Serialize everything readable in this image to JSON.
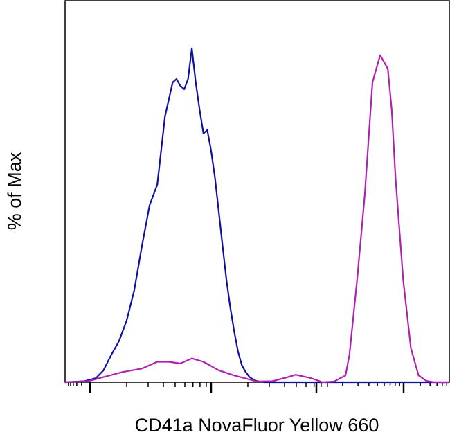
{
  "chart_data": {
    "type": "line",
    "title": "",
    "xlabel": "CD41a NovaFluor Yellow 660",
    "ylabel": "% of Max",
    "x_scale": "log",
    "xlim": [
      0,
      100
    ],
    "ylim": [
      0,
      100
    ],
    "grid": false,
    "legend": "none",
    "series": [
      {
        "color": "#1010a0",
        "x": [
          0,
          5,
          8,
          10,
          12,
          14,
          16,
          18,
          20,
          22,
          24,
          26,
          28,
          29,
          30,
          31,
          32,
          33,
          34,
          35,
          36,
          37,
          38,
          39,
          40,
          41,
          42,
          43,
          44,
          45,
          46,
          47,
          48,
          49,
          50,
          52,
          54,
          56,
          60,
          70,
          100
        ],
        "y": [
          0,
          0.3,
          1.2,
          3.5,
          8,
          12,
          18,
          27,
          40,
          52,
          58,
          78,
          88,
          89,
          87,
          86,
          89,
          98,
          88,
          80,
          73,
          74,
          68,
          60,
          50,
          40,
          30,
          22,
          15,
          9,
          5,
          3,
          1.5,
          0.8,
          0.3,
          0,
          0,
          0,
          0,
          0,
          0
        ]
      },
      {
        "color": "#b020b0",
        "x": [
          0,
          6,
          10,
          15,
          20,
          24,
          27,
          30,
          33,
          36,
          40,
          44,
          48,
          50,
          54,
          58,
          60,
          64,
          67,
          70,
          73,
          74,
          76,
          78,
          80,
          82,
          84,
          85,
          86,
          88,
          90,
          92,
          94,
          96,
          98,
          100
        ],
        "y": [
          0,
          0.3,
          1.5,
          3,
          4,
          6,
          6,
          5.5,
          7,
          6,
          3.5,
          2,
          0.8,
          0.2,
          0.3,
          1.5,
          2.2,
          1.2,
          0,
          0.2,
          2,
          8,
          30,
          55,
          88,
          96,
          92,
          80,
          60,
          30,
          10,
          2,
          0.4,
          0,
          0,
          0
        ]
      }
    ]
  }
}
